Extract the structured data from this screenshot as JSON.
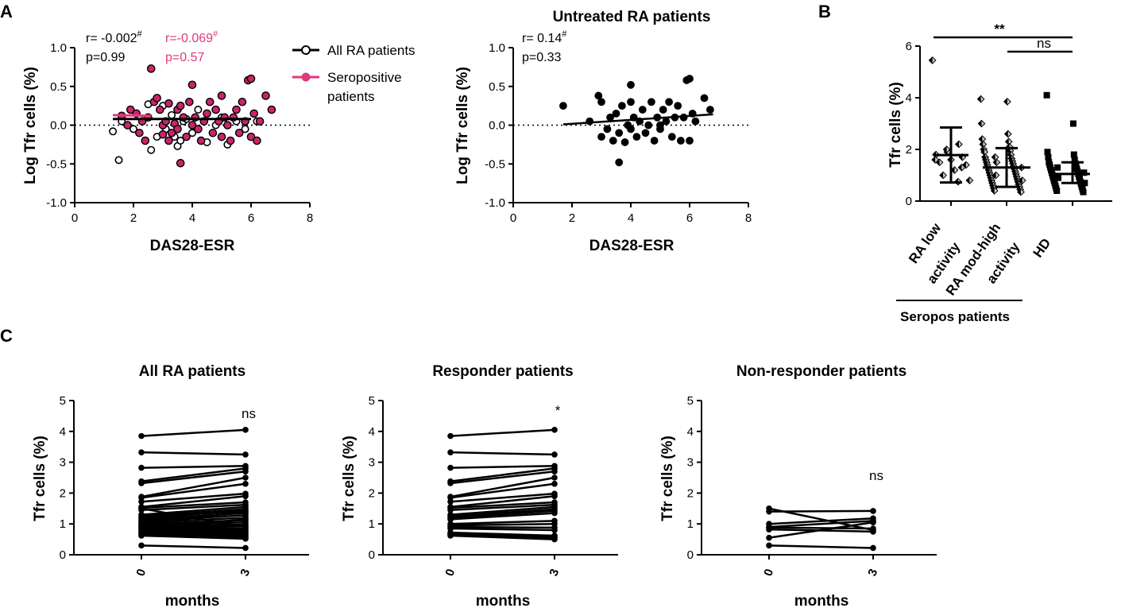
{
  "panel_letters": {
    "a": "A",
    "b": "B",
    "c": "C"
  },
  "colors": {
    "black": "#000000",
    "seropositive": "#e0397d",
    "seropositive_fill": "#c8256b",
    "grey": "#c8c8c8"
  },
  "chart_data": [
    {
      "id": "A1",
      "type": "scatter",
      "title": "",
      "xlabel": "DAS28-ESR",
      "ylabel": "Log Tfr cells (%)",
      "xlim": [
        0,
        8
      ],
      "ylim": [
        -1.0,
        1.0
      ],
      "xticks": [
        "0",
        "2",
        "4",
        "6",
        "8"
      ],
      "yticks": [
        "-1.0",
        "-0.5",
        "0.0",
        "0.5",
        "1.0"
      ],
      "reference_line_y": 0,
      "stats_all": {
        "r_label": "r= -0.002",
        "sup": "#",
        "p_label": "p=0.99"
      },
      "stats_sero": {
        "r_label": "r=-0.069",
        "sup": "#",
        "p_label": "p=0.57"
      },
      "legend": [
        {
          "label": "All RA patients",
          "color": "#000000"
        },
        {
          "label": "Seropositive",
          "label2": "patients",
          "color": "#e0397d"
        }
      ],
      "fit_all": {
        "x": [
          1.3,
          6.0
        ],
        "y": [
          0.08,
          0.08
        ]
      },
      "fit_sero": {
        "x": [
          1.3,
          2.6
        ],
        "y": [
          0.13,
          0.12
        ]
      },
      "series_open": [
        [
          1.3,
          -0.08
        ],
        [
          1.5,
          -0.45
        ],
        [
          1.6,
          0.05
        ],
        [
          2.0,
          -0.05
        ],
        [
          2.5,
          0.27
        ],
        [
          2.6,
          -0.32
        ],
        [
          2.8,
          -0.15
        ],
        [
          3.0,
          0.25
        ],
        [
          3.1,
          -0.05
        ],
        [
          3.3,
          0.13
        ],
        [
          3.4,
          -0.15
        ],
        [
          3.5,
          -0.27
        ],
        [
          3.6,
          -0.2
        ],
        [
          3.7,
          0.05
        ],
        [
          3.8,
          0.08
        ],
        [
          4.0,
          -0.1
        ],
        [
          4.2,
          0.2
        ],
        [
          4.5,
          -0.22
        ],
        [
          4.8,
          0.0
        ],
        [
          5.0,
          0.1
        ],
        [
          5.2,
          -0.25
        ],
        [
          5.5,
          0.05
        ],
        [
          5.8,
          -0.05
        ],
        [
          6.2,
          0.05
        ]
      ],
      "series_sero": [
        [
          1.6,
          0.12
        ],
        [
          1.8,
          0.0
        ],
        [
          1.9,
          0.2
        ],
        [
          2.1,
          0.15
        ],
        [
          2.2,
          -0.1
        ],
        [
          2.3,
          0.05
        ],
        [
          2.4,
          -0.2
        ],
        [
          2.5,
          0.1
        ],
        [
          2.6,
          0.73
        ],
        [
          2.7,
          0.3
        ],
        [
          2.8,
          0.35
        ],
        [
          2.9,
          0.2
        ],
        [
          3.0,
          0.0
        ],
        [
          3.0,
          -0.12
        ],
        [
          3.1,
          0.05
        ],
        [
          3.2,
          -0.2
        ],
        [
          3.2,
          0.28
        ],
        [
          3.3,
          -0.1
        ],
        [
          3.4,
          0.02
        ],
        [
          3.5,
          0.2
        ],
        [
          3.5,
          -0.05
        ],
        [
          3.6,
          -0.49
        ],
        [
          3.6,
          0.25
        ],
        [
          3.7,
          0.1
        ],
        [
          3.8,
          -0.15
        ],
        [
          3.9,
          0.3
        ],
        [
          4.0,
          0.0
        ],
        [
          4.0,
          0.52
        ],
        [
          4.1,
          0.1
        ],
        [
          4.2,
          -0.05
        ],
        [
          4.3,
          -0.2
        ],
        [
          4.4,
          0.05
        ],
        [
          4.5,
          0.15
        ],
        [
          4.6,
          0.3
        ],
        [
          4.7,
          -0.1
        ],
        [
          4.8,
          0.2
        ],
        [
          4.9,
          0.05
        ],
        [
          5.0,
          -0.15
        ],
        [
          5.0,
          0.38
        ],
        [
          5.1,
          0.1
        ],
        [
          5.2,
          0.0
        ],
        [
          5.3,
          -0.2
        ],
        [
          5.4,
          0.1
        ],
        [
          5.5,
          0.2
        ],
        [
          5.6,
          -0.1
        ],
        [
          5.7,
          0.3
        ],
        [
          5.8,
          0.05
        ],
        [
          5.9,
          0.58
        ],
        [
          6.0,
          0.6
        ],
        [
          6.0,
          -0.15
        ],
        [
          6.1,
          0.15
        ],
        [
          6.2,
          -0.2
        ],
        [
          6.3,
          0.05
        ],
        [
          6.5,
          0.38
        ],
        [
          6.7,
          0.2
        ]
      ]
    },
    {
      "id": "A2",
      "type": "scatter",
      "title": "Untreated RA patients",
      "xlabel": "DAS28-ESR",
      "ylabel": "Log Tfr cells (%)",
      "xlim": [
        0,
        8
      ],
      "ylim": [
        -1.0,
        1.0
      ],
      "xticks": [
        "0",
        "2",
        "4",
        "6",
        "8"
      ],
      "yticks": [
        "-1.0",
        "-0.5",
        "0.0",
        "0.5",
        "1.0"
      ],
      "reference_line_y": 0,
      "stats": {
        "r_label": "r= 0.14",
        "sup": "#",
        "p_label": "p=0.33"
      },
      "fit": {
        "x": [
          1.7,
          6.8
        ],
        "y": [
          0.01,
          0.14
        ]
      },
      "points": [
        [
          1.7,
          0.25
        ],
        [
          2.6,
          0.05
        ],
        [
          2.9,
          0.38
        ],
        [
          3.0,
          -0.15
        ],
        [
          3.0,
          0.3
        ],
        [
          3.2,
          -0.05
        ],
        [
          3.3,
          0.1
        ],
        [
          3.4,
          -0.2
        ],
        [
          3.5,
          0.15
        ],
        [
          3.6,
          -0.1
        ],
        [
          3.7,
          0.25
        ],
        [
          3.8,
          -0.22
        ],
        [
          3.9,
          0.0
        ],
        [
          4.0,
          0.3
        ],
        [
          4.0,
          -0.05
        ],
        [
          4.0,
          0.52
        ],
        [
          4.1,
          0.1
        ],
        [
          4.2,
          -0.15
        ],
        [
          4.3,
          0.05
        ],
        [
          4.4,
          0.2
        ],
        [
          4.5,
          -0.1
        ],
        [
          4.6,
          0.0
        ],
        [
          4.7,
          0.3
        ],
        [
          4.8,
          -0.2
        ],
        [
          4.9,
          0.1
        ],
        [
          5.0,
          0.0
        ],
        [
          5.0,
          -0.05
        ],
        [
          5.1,
          0.2
        ],
        [
          5.2,
          0.05
        ],
        [
          5.3,
          0.3
        ],
        [
          5.4,
          -0.15
        ],
        [
          5.5,
          0.1
        ],
        [
          5.6,
          0.25
        ],
        [
          5.7,
          -0.2
        ],
        [
          5.8,
          0.1
        ],
        [
          5.9,
          0.58
        ],
        [
          6.0,
          0.6
        ],
        [
          6.0,
          -0.2
        ],
        [
          6.1,
          0.15
        ],
        [
          6.2,
          0.05
        ],
        [
          6.5,
          0.35
        ],
        [
          6.7,
          0.2
        ],
        [
          3.6,
          -0.48
        ]
      ]
    },
    {
      "id": "B",
      "type": "scatter",
      "title": "",
      "ylabel": "Tfr cells (%)",
      "ylim": [
        0,
        6
      ],
      "yticks": [
        "0",
        "2",
        "4",
        "6"
      ],
      "categories": [
        "RA low activity",
        "RA mod-high activity",
        "HD"
      ],
      "category_lines": [
        [
          "RA low",
          "activity"
        ],
        [
          "RA mod-high",
          "activity"
        ],
        [
          "HD"
        ]
      ],
      "group_label": "Seropos patients",
      "sig_brackets": [
        {
          "label": "**",
          "from": 0,
          "to": 2
        },
        {
          "label": "ns",
          "from": 1,
          "to": 2
        }
      ],
      "summary": [
        {
          "mean": 1.78,
          "sd_low": 0.72,
          "sd_high": 2.85
        },
        {
          "mean": 1.3,
          "sd_low": 0.55,
          "sd_high": 2.05
        },
        {
          "mean": 1.05,
          "sd_low": 0.7,
          "sd_high": 1.5
        }
      ],
      "points": [
        [
          5.45,
          2.2,
          1.9,
          1.8,
          1.7,
          1.6,
          1.5,
          1.4,
          1.2,
          1.0,
          0.8,
          0.75,
          2.0,
          1.6,
          1.3
        ],
        [
          3.95,
          3.85,
          3.0,
          2.6,
          2.4,
          2.3,
          2.2,
          2.1,
          2.0,
          1.95,
          1.9,
          1.8,
          1.7,
          1.65,
          1.6,
          1.55,
          1.5,
          1.45,
          1.4,
          1.35,
          1.3,
          1.25,
          1.2,
          1.15,
          1.1,
          1.05,
          1.0,
          0.95,
          0.9,
          0.85,
          0.8,
          0.75,
          0.7,
          0.65,
          0.6,
          0.55,
          0.5,
          0.45,
          0.4,
          0.35,
          1.7,
          1.3,
          1.0,
          0.8,
          1.5
        ],
        [
          4.1,
          3.0,
          1.9,
          1.8,
          1.7,
          1.6,
          1.5,
          1.45,
          1.4,
          1.35,
          1.3,
          1.25,
          1.2,
          1.15,
          1.1,
          1.05,
          1.0,
          0.95,
          0.9,
          0.85,
          0.8,
          0.75,
          0.7,
          0.65,
          0.6,
          0.55,
          0.5,
          0.45,
          0.4,
          0.35,
          1.3,
          1.1,
          0.9,
          0.7
        ]
      ]
    },
    {
      "id": "C1",
      "type": "line",
      "title": "All RA patients",
      "xlabel": "months",
      "ylabel": "Tfr cells (%)",
      "x": [
        "0",
        "3"
      ],
      "ylim": [
        0,
        5
      ],
      "yticks": [
        "0",
        "1",
        "2",
        "3",
        "4",
        "5"
      ],
      "annotation": "ns",
      "pairs": [
        [
          3.85,
          4.05
        ],
        [
          3.32,
          3.25
        ],
        [
          2.82,
          2.88
        ],
        [
          2.38,
          2.8
        ],
        [
          2.32,
          2.7
        ],
        [
          1.88,
          2.5
        ],
        [
          1.85,
          2.3
        ],
        [
          1.72,
          1.98
        ],
        [
          1.55,
          1.9
        ],
        [
          1.52,
          1.7
        ],
        [
          1.45,
          1.62
        ],
        [
          1.3,
          1.55
        ],
        [
          1.25,
          1.48
        ],
        [
          1.2,
          1.42
        ],
        [
          1.15,
          1.35
        ],
        [
          1.1,
          1.28
        ],
        [
          1.05,
          1.2
        ],
        [
          1.0,
          1.12
        ],
        [
          0.98,
          1.05
        ],
        [
          0.95,
          0.98
        ],
        [
          0.9,
          0.92
        ],
        [
          0.88,
          0.85
        ],
        [
          0.85,
          0.8
        ],
        [
          0.8,
          0.75
        ],
        [
          0.75,
          0.7
        ],
        [
          0.72,
          0.65
        ],
        [
          0.68,
          0.6
        ],
        [
          0.65,
          0.55
        ],
        [
          0.62,
          0.52
        ],
        [
          0.3,
          0.22
        ],
        [
          1.5,
          0.9
        ],
        [
          1.0,
          1.4
        ],
        [
          0.85,
          1.15
        ]
      ]
    },
    {
      "id": "C2",
      "type": "line",
      "title": "Responder patients",
      "xlabel": "months",
      "ylabel": "Tfr cells (%)",
      "x": [
        "0",
        "3"
      ],
      "ylim": [
        0,
        5
      ],
      "yticks": [
        "0",
        "1",
        "2",
        "3",
        "4",
        "5"
      ],
      "annotation": "*",
      "pairs": [
        [
          3.85,
          4.05
        ],
        [
          3.32,
          3.25
        ],
        [
          2.82,
          2.88
        ],
        [
          2.38,
          2.8
        ],
        [
          2.32,
          2.7
        ],
        [
          1.88,
          2.5
        ],
        [
          1.85,
          2.3
        ],
        [
          1.72,
          1.98
        ],
        [
          1.55,
          1.9
        ],
        [
          1.52,
          1.7
        ],
        [
          1.45,
          1.62
        ],
        [
          1.3,
          1.55
        ],
        [
          1.25,
          1.48
        ],
        [
          1.2,
          1.42
        ],
        [
          1.15,
          1.35
        ],
        [
          1.0,
          1.1
        ],
        [
          0.95,
          1.0
        ],
        [
          0.9,
          0.88
        ],
        [
          0.85,
          0.8
        ],
        [
          0.72,
          0.62
        ],
        [
          0.68,
          0.58
        ],
        [
          0.65,
          0.55
        ],
        [
          0.62,
          0.5
        ]
      ]
    },
    {
      "id": "C3",
      "type": "line",
      "title": "Non-responder patients",
      "xlabel": "months",
      "ylabel": "Tfr cells (%)",
      "x": [
        "0",
        "3"
      ],
      "ylim": [
        0,
        5
      ],
      "yticks": [
        "0",
        "1",
        "2",
        "3",
        "4",
        "5"
      ],
      "annotation": "ns",
      "pairs": [
        [
          1.5,
          0.8
        ],
        [
          1.4,
          1.42
        ],
        [
          1.0,
          1.18
        ],
        [
          0.9,
          1.1
        ],
        [
          0.88,
          0.85
        ],
        [
          0.82,
          0.75
        ],
        [
          0.55,
          1.05
        ],
        [
          0.3,
          0.22
        ]
      ]
    }
  ]
}
